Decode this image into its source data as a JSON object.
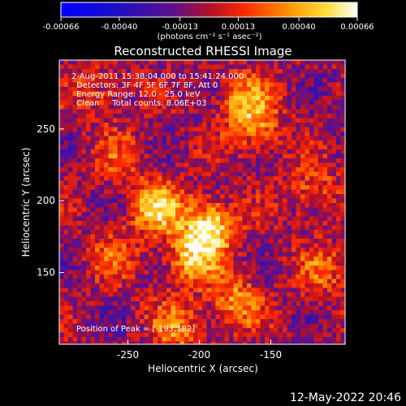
{
  "chart_data": {
    "type": "heatmap",
    "title": "Reconstructed RHESSI Image",
    "xlabel": "Heliocentric X (arcsec)",
    "ylabel": "Heliocentric Y (arcsec)",
    "xlim": [
      -298,
      -98
    ],
    "ylim": [
      100,
      298
    ],
    "x_ticks": [
      -250,
      -200,
      -150
    ],
    "x_tick_labels": [
      "-250",
      "-200",
      "-150"
    ],
    "y_ticks": [
      150,
      200,
      250
    ],
    "y_tick_labels": [
      "150",
      "200",
      "250"
    ],
    "colorbar": {
      "min": -0.00066,
      "max": 0.00066,
      "ticks": [
        -0.00066,
        -0.0004,
        -0.00013,
        0.00013,
        0.0004,
        0.00066
      ],
      "tick_labels": [
        "-0.00066",
        "-0.00040",
        "-0.00013",
        "0.00013",
        "0.00040",
        "0.00066"
      ],
      "units_label": "(photons cm⁻² s⁻¹ asec⁻²)"
    },
    "annotations": {
      "time_range": "2-Aug-2011 15:38:04.000 to 15:41:24.000",
      "detectors": "Detectors: 3F 4F 5F 6F 7F 8F, Att 0",
      "energy_range": "Energy Range: 12.0 - 25.0 keV",
      "method_counts": "Clean     Total counts: 8.06E+03",
      "peak_position": "Position of Peak = [-193,182]"
    },
    "peak": [
      -193,
      182
    ],
    "sources": [
      {
        "x": -193,
        "y": 182,
        "value": 0.00066
      },
      {
        "x": -230,
        "y": 195,
        "value": 0.00055
      },
      {
        "x": -205,
        "y": 160,
        "value": 0.00045
      },
      {
        "x": -175,
        "y": 130,
        "value": 0.0004
      },
      {
        "x": -168,
        "y": 270,
        "value": 0.0004
      },
      {
        "x": -160,
        "y": 250,
        "value": 0.00032
      },
      {
        "x": -270,
        "y": 275,
        "value": 0.00025
      },
      {
        "x": -260,
        "y": 160,
        "value": 0.00025
      },
      {
        "x": -215,
        "y": 112,
        "value": 0.00035
      },
      {
        "x": -120,
        "y": 205,
        "value": 0.0003
      },
      {
        "x": -115,
        "y": 150,
        "value": 0.00028
      },
      {
        "x": -255,
        "y": 230,
        "value": 0.00022
      }
    ]
  },
  "footer": {
    "timestamp": "12-May-2022 20:46"
  }
}
